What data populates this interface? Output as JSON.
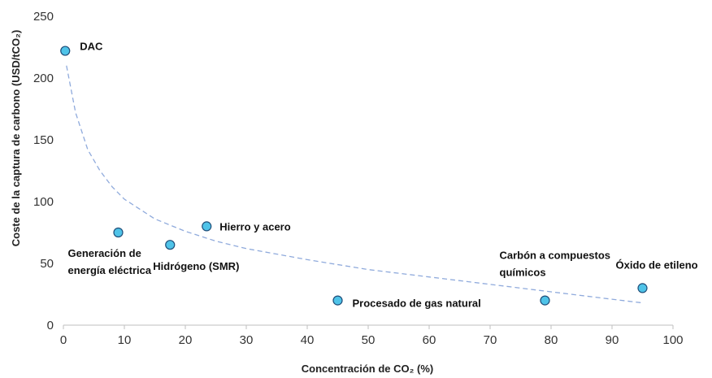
{
  "chart_data": {
    "type": "scatter",
    "xlabel": "Concentración de CO₂ (%)",
    "ylabel": "Coste de la captura de carbono (USD/tCO₂)",
    "xlim": [
      0,
      100
    ],
    "ylim": [
      0,
      250
    ],
    "x_ticks": [
      0,
      10,
      20,
      30,
      40,
      50,
      60,
      70,
      80,
      90,
      100
    ],
    "y_ticks": [
      0,
      50,
      100,
      150,
      200,
      250
    ],
    "grid": false,
    "legend": "none",
    "marker_color": "#4FC3E8",
    "marker_edge_color": "#1F4E79",
    "trendline_color": "#8FAADC",
    "trendline": {
      "style": "dashed",
      "x": [
        0.5,
        2,
        4,
        6,
        8,
        10,
        15,
        20,
        25,
        30,
        40,
        50,
        60,
        70,
        80,
        90,
        95
      ],
      "y": [
        210,
        172,
        142,
        125,
        112,
        102,
        86,
        76,
        68,
        62,
        53,
        45,
        39,
        33,
        27,
        21,
        18
      ]
    },
    "points": [
      {
        "label": "DAC",
        "x": 0.3,
        "y": 222
      },
      {
        "label": "Generación de energía eléctrica",
        "x": 9,
        "y": 75
      },
      {
        "label": "Hidrógeno (SMR)",
        "x": 17.5,
        "y": 65
      },
      {
        "label": "Hierro y acero",
        "x": 23.5,
        "y": 80
      },
      {
        "label": "Procesado de gas natural",
        "x": 45,
        "y": 20
      },
      {
        "label": "Carbón a compuestos químicos",
        "x": 79,
        "y": 20
      },
      {
        "label": "Óxido de etileno",
        "x": 95,
        "y": 30
      }
    ]
  }
}
